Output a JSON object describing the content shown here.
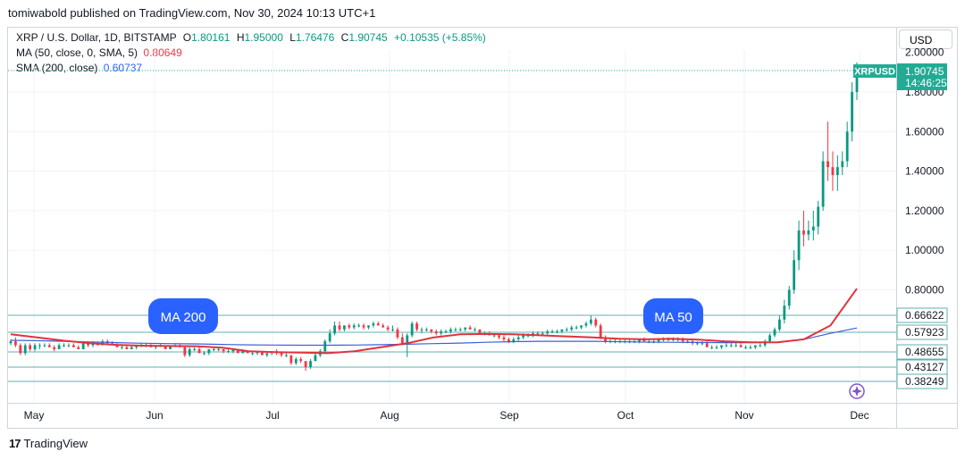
{
  "publisher": "tomiwabold published on TradingView.com, Nov 30, 2024 10:13 UTC+1",
  "legend": {
    "symbol": "XRP / U.S. Dollar, 1D, BITSTAMP",
    "o_label": "O",
    "o": "1.80161",
    "h_label": "H",
    "h": "1.95000",
    "l_label": "L",
    "l": "1.76476",
    "c_label": "C",
    "c": "1.90745",
    "change": "+0.10535 (+5.85%)",
    "ma50_label": "MA (50, close, 0, SMA, 5)",
    "ma50_value": "0.80649",
    "sma200_label": "SMA (200, close)",
    "sma200_value": "0.60737"
  },
  "currency_button": "USD",
  "footer_logo": "17",
  "footer_brand": "TradingView",
  "chart_data": {
    "type": "line",
    "symbol_tag": "XRPUSD",
    "last_price": "1.90745",
    "countdown": "14:46:25",
    "y_ticks": [
      "1.80000",
      "1.60000",
      "1.40000",
      "1.20000",
      "1.00000",
      "0.80000"
    ],
    "y_ticks_values": [
      1.8,
      1.6,
      1.4,
      1.2,
      1.0,
      0.8
    ],
    "top_cut_label": "2.00000",
    "level_labels": [
      "0.66622",
      "0.57923",
      "0.48655",
      "0.43127",
      "0.38249"
    ],
    "levels": [
      0.66622,
      0.57923,
      0.48655,
      0.43127,
      0.38249
    ],
    "x_labels": [
      "May",
      "Jun",
      "Jul",
      "Aug",
      "Sep",
      "Oct",
      "Nov",
      "Dec"
    ],
    "annotations": [
      "MA 200",
      "MA 50"
    ],
    "colors": {
      "up": "#089981",
      "down": "#f23645",
      "ma50": "#e0333d",
      "sma200": "#3d5fd9",
      "level": "#5fb0b0",
      "tag": "#22ab94",
      "fav": "#7e57c2"
    },
    "series": [
      {
        "name": "MA (50, close, 0, SMA, 5)",
        "values": [
          0.575,
          0.56,
          0.543,
          0.53,
          0.522,
          0.518,
          0.516,
          0.515,
          0.508,
          0.49,
          0.485,
          0.483,
          0.48,
          0.49,
          0.51,
          0.53,
          0.56,
          0.575,
          0.577,
          0.575,
          0.57,
          0.565,
          0.56,
          0.553,
          0.55,
          0.553,
          0.548,
          0.54,
          0.535,
          0.535,
          0.55,
          0.62,
          0.8065
        ]
      },
      {
        "name": "SMA (200, close)",
        "values": [
          0.545,
          0.543,
          0.54,
          0.537,
          0.533,
          0.53,
          0.528,
          0.527,
          0.524,
          0.522,
          0.521,
          0.52,
          0.52,
          0.521,
          0.523,
          0.525,
          0.528,
          0.531,
          0.535,
          0.538,
          0.54,
          0.54,
          0.54,
          0.538,
          0.536,
          0.535,
          0.534,
          0.533,
          0.533,
          0.536,
          0.55,
          0.58,
          0.607
        ]
      }
    ],
    "candles": [
      [
        0.53,
        0.55,
        0.52,
        0.54
      ],
      [
        0.54,
        0.56,
        0.51,
        0.52
      ],
      [
        0.52,
        0.53,
        0.47,
        0.48
      ],
      [
        0.48,
        0.53,
        0.47,
        0.52
      ],
      [
        0.52,
        0.53,
        0.49,
        0.5
      ],
      [
        0.5,
        0.53,
        0.49,
        0.52
      ],
      [
        0.52,
        0.53,
        0.5,
        0.52
      ],
      [
        0.52,
        0.53,
        0.51,
        0.52
      ],
      [
        0.52,
        0.53,
        0.51,
        0.51
      ],
      [
        0.51,
        0.52,
        0.49,
        0.5
      ],
      [
        0.5,
        0.53,
        0.5,
        0.52
      ],
      [
        0.52,
        0.53,
        0.51,
        0.52
      ],
      [
        0.52,
        0.53,
        0.51,
        0.52
      ],
      [
        0.52,
        0.53,
        0.51,
        0.51
      ],
      [
        0.51,
        0.52,
        0.5,
        0.5
      ],
      [
        0.5,
        0.53,
        0.5,
        0.53
      ],
      [
        0.53,
        0.54,
        0.51,
        0.52
      ],
      [
        0.52,
        0.54,
        0.51,
        0.53
      ],
      [
        0.53,
        0.54,
        0.52,
        0.52
      ],
      [
        0.52,
        0.55,
        0.52,
        0.54
      ],
      [
        0.54,
        0.55,
        0.53,
        0.53
      ],
      [
        0.53,
        0.54,
        0.52,
        0.52
      ],
      [
        0.52,
        0.53,
        0.51,
        0.51
      ],
      [
        0.51,
        0.52,
        0.5,
        0.51
      ],
      [
        0.51,
        0.52,
        0.5,
        0.5
      ],
      [
        0.5,
        0.52,
        0.5,
        0.51
      ],
      [
        0.51,
        0.52,
        0.5,
        0.52
      ],
      [
        0.52,
        0.53,
        0.51,
        0.52
      ],
      [
        0.52,
        0.53,
        0.51,
        0.52
      ],
      [
        0.52,
        0.53,
        0.51,
        0.51
      ],
      [
        0.51,
        0.52,
        0.5,
        0.52
      ],
      [
        0.52,
        0.53,
        0.51,
        0.52
      ],
      [
        0.52,
        0.52,
        0.5,
        0.5
      ],
      [
        0.5,
        0.52,
        0.5,
        0.52
      ],
      [
        0.52,
        0.53,
        0.51,
        0.52
      ],
      [
        0.52,
        0.53,
        0.51,
        0.51
      ],
      [
        0.51,
        0.51,
        0.46,
        0.47
      ],
      [
        0.47,
        0.51,
        0.46,
        0.5
      ],
      [
        0.5,
        0.51,
        0.49,
        0.5
      ],
      [
        0.5,
        0.51,
        0.48,
        0.48
      ],
      [
        0.48,
        0.49,
        0.47,
        0.48
      ],
      [
        0.48,
        0.5,
        0.47,
        0.5
      ],
      [
        0.5,
        0.51,
        0.49,
        0.5
      ],
      [
        0.5,
        0.51,
        0.49,
        0.5
      ],
      [
        0.5,
        0.5,
        0.48,
        0.49
      ],
      [
        0.49,
        0.5,
        0.48,
        0.49
      ],
      [
        0.49,
        0.5,
        0.48,
        0.5
      ],
      [
        0.5,
        0.5,
        0.48,
        0.48
      ],
      [
        0.48,
        0.5,
        0.48,
        0.49
      ],
      [
        0.49,
        0.49,
        0.48,
        0.48
      ],
      [
        0.48,
        0.49,
        0.47,
        0.48
      ],
      [
        0.48,
        0.49,
        0.47,
        0.49
      ],
      [
        0.49,
        0.49,
        0.47,
        0.47
      ],
      [
        0.47,
        0.48,
        0.46,
        0.48
      ],
      [
        0.48,
        0.49,
        0.47,
        0.49
      ],
      [
        0.49,
        0.5,
        0.47,
        0.48
      ],
      [
        0.48,
        0.48,
        0.46,
        0.47
      ],
      [
        0.47,
        0.48,
        0.46,
        0.47
      ],
      [
        0.47,
        0.47,
        0.42,
        0.43
      ],
      [
        0.43,
        0.46,
        0.42,
        0.45
      ],
      [
        0.45,
        0.46,
        0.43,
        0.44
      ],
      [
        0.44,
        0.44,
        0.39,
        0.41
      ],
      [
        0.41,
        0.45,
        0.4,
        0.44
      ],
      [
        0.44,
        0.48,
        0.44,
        0.47
      ],
      [
        0.47,
        0.5,
        0.46,
        0.49
      ],
      [
        0.49,
        0.55,
        0.48,
        0.54
      ],
      [
        0.54,
        0.6,
        0.53,
        0.58
      ],
      [
        0.58,
        0.64,
        0.57,
        0.62
      ],
      [
        0.62,
        0.64,
        0.59,
        0.6
      ],
      [
        0.6,
        0.62,
        0.59,
        0.62
      ],
      [
        0.62,
        0.63,
        0.6,
        0.61
      ],
      [
        0.61,
        0.63,
        0.6,
        0.62
      ],
      [
        0.62,
        0.63,
        0.61,
        0.62
      ],
      [
        0.62,
        0.63,
        0.6,
        0.61
      ],
      [
        0.61,
        0.62,
        0.6,
        0.62
      ],
      [
        0.62,
        0.64,
        0.61,
        0.63
      ],
      [
        0.63,
        0.64,
        0.62,
        0.62
      ],
      [
        0.62,
        0.63,
        0.61,
        0.61
      ],
      [
        0.61,
        0.62,
        0.59,
        0.6
      ],
      [
        0.6,
        0.62,
        0.59,
        0.6
      ],
      [
        0.6,
        0.61,
        0.55,
        0.56
      ],
      [
        0.56,
        0.58,
        0.52,
        0.53
      ],
      [
        0.53,
        0.58,
        0.46,
        0.57
      ],
      [
        0.57,
        0.64,
        0.56,
        0.63
      ],
      [
        0.63,
        0.64,
        0.59,
        0.6
      ],
      [
        0.6,
        0.61,
        0.58,
        0.6
      ],
      [
        0.6,
        0.61,
        0.59,
        0.6
      ],
      [
        0.6,
        0.6,
        0.58,
        0.59
      ],
      [
        0.59,
        0.6,
        0.57,
        0.58
      ],
      [
        0.58,
        0.6,
        0.57,
        0.59
      ],
      [
        0.59,
        0.6,
        0.58,
        0.59
      ],
      [
        0.59,
        0.61,
        0.58,
        0.6
      ],
      [
        0.6,
        0.61,
        0.59,
        0.6
      ],
      [
        0.6,
        0.61,
        0.59,
        0.6
      ],
      [
        0.6,
        0.61,
        0.59,
        0.61
      ],
      [
        0.61,
        0.62,
        0.6,
        0.6
      ],
      [
        0.6,
        0.61,
        0.59,
        0.6
      ],
      [
        0.6,
        0.6,
        0.58,
        0.58
      ],
      [
        0.58,
        0.59,
        0.57,
        0.58
      ],
      [
        0.58,
        0.59,
        0.57,
        0.57
      ],
      [
        0.57,
        0.58,
        0.56,
        0.57
      ],
      [
        0.57,
        0.58,
        0.55,
        0.56
      ],
      [
        0.56,
        0.57,
        0.54,
        0.55
      ],
      [
        0.55,
        0.56,
        0.53,
        0.54
      ],
      [
        0.54,
        0.56,
        0.53,
        0.55
      ],
      [
        0.55,
        0.57,
        0.54,
        0.56
      ],
      [
        0.56,
        0.58,
        0.55,
        0.57
      ],
      [
        0.57,
        0.58,
        0.56,
        0.57
      ],
      [
        0.57,
        0.59,
        0.56,
        0.58
      ],
      [
        0.58,
        0.59,
        0.57,
        0.58
      ],
      [
        0.58,
        0.59,
        0.57,
        0.58
      ],
      [
        0.58,
        0.6,
        0.57,
        0.59
      ],
      [
        0.59,
        0.6,
        0.58,
        0.59
      ],
      [
        0.59,
        0.6,
        0.58,
        0.59
      ],
      [
        0.59,
        0.6,
        0.58,
        0.6
      ],
      [
        0.6,
        0.61,
        0.59,
        0.6
      ],
      [
        0.6,
        0.62,
        0.59,
        0.61
      ],
      [
        0.61,
        0.62,
        0.6,
        0.61
      ],
      [
        0.61,
        0.62,
        0.6,
        0.62
      ],
      [
        0.62,
        0.64,
        0.61,
        0.63
      ],
      [
        0.63,
        0.67,
        0.62,
        0.65
      ],
      [
        0.65,
        0.66,
        0.61,
        0.62
      ],
      [
        0.62,
        0.63,
        0.55,
        0.56
      ],
      [
        0.56,
        0.57,
        0.53,
        0.54
      ],
      [
        0.54,
        0.55,
        0.53,
        0.54
      ],
      [
        0.54,
        0.55,
        0.53,
        0.54
      ],
      [
        0.54,
        0.55,
        0.53,
        0.54
      ],
      [
        0.54,
        0.55,
        0.53,
        0.54
      ],
      [
        0.54,
        0.55,
        0.53,
        0.54
      ],
      [
        0.54,
        0.55,
        0.53,
        0.54
      ],
      [
        0.54,
        0.55,
        0.53,
        0.55
      ],
      [
        0.55,
        0.56,
        0.54,
        0.54
      ],
      [
        0.54,
        0.55,
        0.53,
        0.54
      ],
      [
        0.54,
        0.55,
        0.53,
        0.54
      ],
      [
        0.54,
        0.55,
        0.53,
        0.55
      ],
      [
        0.55,
        0.56,
        0.54,
        0.55
      ],
      [
        0.55,
        0.56,
        0.54,
        0.55
      ],
      [
        0.55,
        0.56,
        0.54,
        0.55
      ],
      [
        0.55,
        0.56,
        0.54,
        0.55
      ],
      [
        0.55,
        0.56,
        0.53,
        0.54
      ],
      [
        0.54,
        0.55,
        0.53,
        0.54
      ],
      [
        0.54,
        0.55,
        0.52,
        0.53
      ],
      [
        0.53,
        0.54,
        0.52,
        0.53
      ],
      [
        0.53,
        0.54,
        0.52,
        0.53
      ],
      [
        0.53,
        0.54,
        0.51,
        0.51
      ],
      [
        0.51,
        0.52,
        0.5,
        0.51
      ],
      [
        0.51,
        0.52,
        0.5,
        0.51
      ],
      [
        0.51,
        0.52,
        0.5,
        0.52
      ],
      [
        0.52,
        0.53,
        0.51,
        0.52
      ],
      [
        0.52,
        0.53,
        0.51,
        0.52
      ],
      [
        0.52,
        0.53,
        0.51,
        0.52
      ],
      [
        0.52,
        0.53,
        0.51,
        0.51
      ],
      [
        0.51,
        0.52,
        0.5,
        0.51
      ],
      [
        0.51,
        0.52,
        0.5,
        0.51
      ],
      [
        0.51,
        0.52,
        0.5,
        0.52
      ],
      [
        0.52,
        0.53,
        0.51,
        0.52
      ],
      [
        0.52,
        0.55,
        0.51,
        0.54
      ],
      [
        0.54,
        0.58,
        0.53,
        0.57
      ],
      [
        0.57,
        0.61,
        0.56,
        0.6
      ],
      [
        0.6,
        0.67,
        0.59,
        0.65
      ],
      [
        0.65,
        0.75,
        0.63,
        0.72
      ],
      [
        0.72,
        0.82,
        0.7,
        0.8
      ],
      [
        0.8,
        1.0,
        0.78,
        0.95
      ],
      [
        0.95,
        1.15,
        0.9,
        1.1
      ],
      [
        1.1,
        1.2,
        1.02,
        1.08
      ],
      [
        1.08,
        1.15,
        1.05,
        1.1
      ],
      [
        1.1,
        1.2,
        1.05,
        1.12
      ],
      [
        1.12,
        1.25,
        1.08,
        1.22
      ],
      [
        1.22,
        1.5,
        1.2,
        1.45
      ],
      [
        1.45,
        1.65,
        1.35,
        1.42
      ],
      [
        1.42,
        1.5,
        1.3,
        1.38
      ],
      [
        1.38,
        1.48,
        1.3,
        1.42
      ],
      [
        1.42,
        1.5,
        1.38,
        1.45
      ],
      [
        1.45,
        1.65,
        1.42,
        1.6
      ],
      [
        1.6,
        1.85,
        1.55,
        1.8
      ],
      [
        1.8,
        1.95,
        1.76,
        1.907
      ]
    ]
  }
}
